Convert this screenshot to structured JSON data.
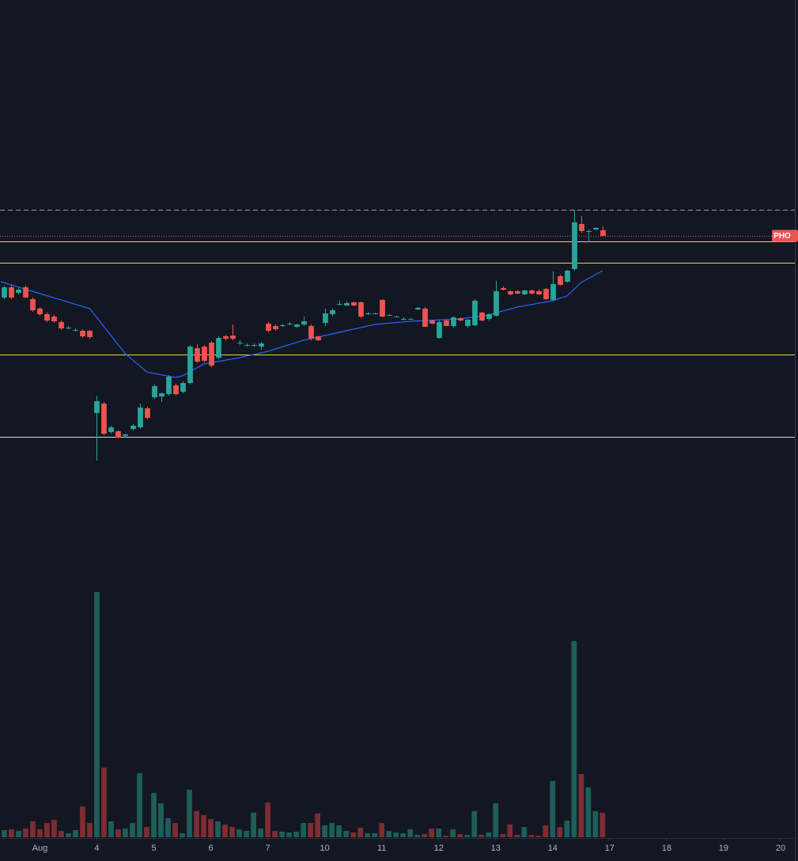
{
  "chart_data": {
    "type": "candlestick",
    "symbol": "PHO",
    "up_color": "#26a69a",
    "down_color": "#ef5350",
    "volume_up_color": "#1e5e5a",
    "volume_down_color": "#7d2d31",
    "xlim": [
      -0.6,
      111
    ],
    "ylim": [
      0,
      60
    ],
    "y2lim": [
      0,
      340
    ],
    "xticks": [
      {
        "value": 5,
        "label": "Aug"
      },
      {
        "value": 13,
        "label": "4"
      },
      {
        "value": 21,
        "label": "5"
      },
      {
        "value": 29,
        "label": "6"
      },
      {
        "value": 37,
        "label": "7"
      },
      {
        "value": 45,
        "label": "10"
      },
      {
        "value": 53,
        "label": "11"
      },
      {
        "value": 61,
        "label": "12"
      },
      {
        "value": 69,
        "label": "13"
      },
      {
        "value": 77,
        "label": "14"
      },
      {
        "value": 85,
        "label": "17"
      },
      {
        "value": 93,
        "label": "18"
      },
      {
        "value": 101,
        "label": "19"
      },
      {
        "value": 109,
        "label": "20"
      }
    ],
    "open": [
      22.4,
      23.7,
      23.0,
      23.7,
      22.2,
      21.0,
      20.3,
      20.0,
      19.3,
      18.6,
      18.3,
      18.2,
      18.2,
      7.8,
      9.0,
      5.4,
      5.5,
      4.9,
      5.8,
      6.0,
      8.4,
      9.8,
      9.9,
      10.2,
      11.3,
      10.5,
      11.6,
      16.0,
      16.2,
      16.7,
      14.8,
      17.5,
      17.6,
      16.7,
      16.4,
      16.3,
      16.2,
      19.1,
      18.8,
      18.9,
      19.1,
      18.7,
      19.0,
      18.8,
      17.5,
      19.2,
      20.3,
      21.6,
      21.4,
      21.8,
      21.8,
      20.4,
      20.4,
      22.1,
      20.2,
      20.0,
      19.7,
      19.7,
      20.9,
      21.0,
      19.5,
      17.3,
      19.5,
      18.8,
      19.8,
      18.8,
      18.9,
      20.5,
      19.7,
      20.1,
      23.6,
      23.2,
      23.2,
      22.8,
      23.3,
      23.2,
      23.5,
      22.1,
      25.1,
      24.4,
      26.0,
      31.7,
      30.8,
      31.0,
      30.9
    ],
    "high": [
      23.9,
      24.0,
      23.6,
      23.9,
      22.4,
      21.2,
      20.5,
      20.2,
      19.5,
      18.8,
      18.5,
      18.4,
      18.3,
      10.0,
      9.2,
      6.2,
      5.6,
      5.2,
      6.4,
      9.0,
      8.6,
      11.4,
      10.4,
      12.6,
      11.5,
      11.8,
      16.4,
      16.5,
      16.4,
      16.9,
      17.5,
      17.7,
      19.0,
      17.0,
      16.6,
      16.6,
      16.8,
      19.3,
      19.0,
      19.1,
      19.3,
      19.1,
      20.0,
      19.0,
      17.6,
      21.0,
      21.0,
      22.0,
      21.9,
      21.9,
      21.9,
      20.6,
      20.5,
      22.2,
      20.3,
      20.1,
      19.9,
      19.8,
      21.2,
      21.2,
      19.6,
      19.5,
      19.6,
      20.0,
      19.9,
      19.7,
      22.2,
      20.6,
      20.4,
      24.5,
      23.8,
      23.3,
      23.3,
      23.4,
      23.4,
      23.4,
      23.6,
      25.7,
      25.3,
      25.9,
      33.5,
      32.7,
      31.0,
      31.3,
      31.4
    ],
    "low": [
      22.2,
      22.2,
      22.8,
      22.3,
      20.6,
      20.1,
      19.3,
      19.2,
      18.3,
      18.4,
      18.1,
      17.3,
      17.2,
      1.8,
      5.0,
      5.2,
      4.6,
      4.7,
      5.6,
      5.8,
      7.0,
      9.6,
      9.2,
      10.0,
      10.0,
      10.3,
      11.4,
      14.1,
      14.2,
      13.6,
      14.6,
      17.0,
      17.0,
      16.4,
      16.2,
      16.2,
      15.8,
      18.0,
      18.2,
      18.7,
      18.9,
      18.6,
      18.8,
      17.0,
      16.9,
      18.8,
      20.0,
      21.4,
      21.3,
      21.3,
      19.8,
      20.2,
      20.3,
      19.9,
      20.1,
      19.9,
      19.5,
      19.6,
      20.8,
      18.7,
      19.0,
      17.2,
      18.8,
      18.6,
      19.4,
      18.6,
      18.8,
      19.4,
      19.5,
      20.0,
      23.3,
      22.7,
      22.8,
      22.7,
      22.8,
      22.7,
      22.1,
      22.0,
      23.9,
      24.3,
      25.8,
      30.6,
      29.4,
      30.9,
      30.1
    ],
    "close": [
      23.7,
      22.4,
      23.4,
      22.4,
      20.8,
      20.3,
      19.5,
      19.4,
      18.5,
      18.6,
      18.3,
      17.5,
      17.4,
      9.3,
      5.2,
      6.0,
      4.7,
      5.1,
      6.2,
      8.5,
      7.2,
      11.2,
      10.3,
      12.4,
      10.2,
      11.6,
      16.2,
      14.3,
      14.4,
      13.8,
      17.3,
      17.2,
      17.2,
      16.7,
      16.4,
      16.4,
      16.6,
      18.2,
      18.4,
      18.9,
      19.1,
      19.0,
      19.4,
      17.2,
      17.0,
      20.4,
      20.8,
      21.6,
      21.7,
      21.4,
      20.0,
      20.4,
      20.4,
      20.0,
      20.2,
      20.0,
      19.7,
      19.7,
      21.1,
      18.7,
      19.1,
      19.3,
      18.8,
      19.9,
      19.5,
      19.6,
      22.0,
      19.5,
      20.3,
      23.2,
      23.4,
      22.8,
      22.9,
      23.3,
      22.9,
      22.8,
      22.2,
      24.1,
      24.0,
      25.8,
      31.9,
      30.8,
      30.8,
      31.2,
      30.2
    ],
    "volume": [
      9,
      10,
      8,
      11,
      20,
      10,
      18,
      22,
      8,
      5,
      9,
      39,
      18,
      310,
      88,
      20,
      10,
      11,
      18,
      81,
      13,
      56,
      43,
      24,
      18,
      5,
      60,
      33,
      28,
      23,
      20,
      16,
      13,
      10,
      8,
      31,
      11,
      44,
      8,
      7,
      6,
      7,
      18,
      18,
      30,
      15,
      18,
      15,
      8,
      6,
      12,
      5,
      5,
      18,
      8,
      6,
      5,
      10,
      3,
      4,
      11,
      11,
      2,
      10,
      4,
      3,
      33,
      3,
      6,
      43,
      4,
      16,
      3,
      13,
      3,
      2,
      15,
      71,
      13,
      21,
      248,
      80,
      63,
      33,
      31
    ],
    "ma": {
      "color": "#2962ff",
      "x": [
        -0.5,
        12,
        17,
        20,
        24,
        25,
        28,
        33,
        37,
        42,
        47,
        52,
        57,
        64,
        68,
        72,
        77,
        79,
        81,
        84
      ],
      "values": [
        24.4,
        21.0,
        15.3,
        13.0,
        12.3,
        12.5,
        14.0,
        14.8,
        15.6,
        17.0,
        18.0,
        19.0,
        19.4,
        19.7,
        20.2,
        21.2,
        22.0,
        22.6,
        24.3,
        25.8
      ]
    },
    "levels": [
      {
        "value": 33.5,
        "color": "#9598a1",
        "style": "dashed"
      },
      {
        "value": 30.2,
        "color": "#ef5350",
        "style": "dotted"
      },
      {
        "value": 29.5,
        "color": "#e8d44d",
        "style": "solid"
      },
      {
        "value": 26.8,
        "color": "#e8d44d",
        "style": "solid"
      },
      {
        "value": 15.2,
        "color": "#e8d44d",
        "style": "solid"
      },
      {
        "value": 4.8,
        "color": "#d1d4dc",
        "style": "solid"
      }
    ]
  }
}
